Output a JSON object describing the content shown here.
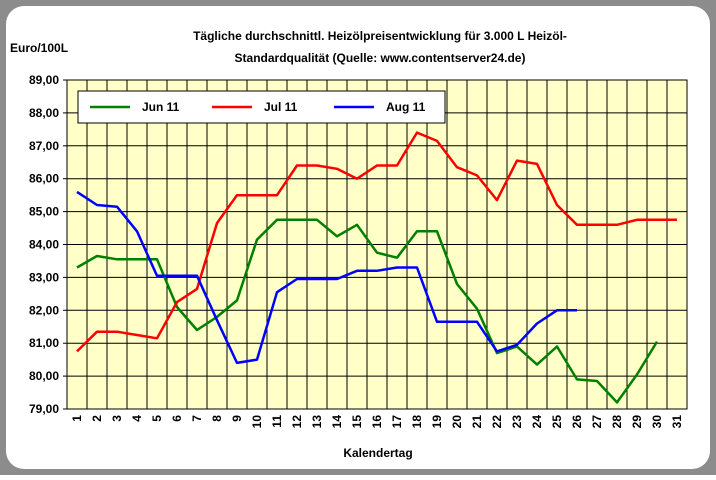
{
  "chart_data": {
    "type": "line",
    "title": [
      "Tägliche durchschnittl. Heizölpreisentwicklung für 3.000 L Heizöl-",
      "Standardqualität (Quelle: www.contentserver24.de)"
    ],
    "y_label": "Euro/100L",
    "x_label": "Kalendertag",
    "categories": [
      "1",
      "2",
      "3",
      "4",
      "5",
      "6",
      "7",
      "8",
      "9",
      "10",
      "11",
      "12",
      "13",
      "14",
      "15",
      "16",
      "17",
      "18",
      "19",
      "20",
      "21",
      "22",
      "23",
      "24",
      "25",
      "26",
      "27",
      "28",
      "29",
      "30",
      "31"
    ],
    "series": [
      {
        "name": "Jun 11",
        "color": "#008000",
        "values": [
          83.3,
          83.65,
          83.55,
          83.55,
          83.55,
          82.1,
          81.4,
          81.8,
          82.3,
          84.15,
          84.75,
          84.75,
          84.75,
          84.25,
          84.6,
          83.75,
          83.6,
          84.4,
          84.4,
          82.8,
          82.05,
          80.7,
          80.9,
          80.35,
          80.9,
          79.9,
          79.85,
          79.2,
          80.05,
          81.05,
          null
        ]
      },
      {
        "name": "Jul 11",
        "color": "#ff0000",
        "values": [
          80.75,
          81.35,
          81.35,
          81.25,
          81.15,
          82.25,
          82.65,
          84.65,
          85.5,
          85.5,
          85.5,
          86.4,
          86.4,
          86.3,
          86.0,
          86.4,
          86.4,
          87.4,
          87.15,
          86.35,
          86.1,
          85.35,
          86.55,
          86.45,
          85.2,
          84.6,
          84.6,
          84.6,
          84.75,
          84.75,
          84.75
        ]
      },
      {
        "name": "Aug 11",
        "color": "#0000ff",
        "values": [
          85.6,
          85.2,
          85.15,
          84.4,
          83.05,
          83.05,
          83.05,
          81.7,
          80.4,
          80.5,
          82.55,
          82.95,
          82.95,
          82.95,
          83.2,
          83.2,
          83.3,
          83.3,
          81.65,
          81.65,
          81.65,
          80.75,
          80.95,
          81.6,
          82.0,
          82.0,
          null,
          null,
          null,
          null,
          null
        ]
      }
    ],
    "ylim": [
      79,
      89
    ],
    "yticks": [
      {
        "value": 79,
        "label": "79,00"
      },
      {
        "value": 80,
        "label": "80,00"
      },
      {
        "value": 81,
        "label": "81,00"
      },
      {
        "value": 82,
        "label": "82,00"
      },
      {
        "value": 83,
        "label": "83,00"
      },
      {
        "value": 84,
        "label": "84,00"
      },
      {
        "value": 85,
        "label": "85,00"
      },
      {
        "value": 86,
        "label": "86,00"
      },
      {
        "value": 87,
        "label": "87,00"
      },
      {
        "value": 88,
        "label": "88,00"
      },
      {
        "value": 89,
        "label": "89,00"
      }
    ],
    "grid": true,
    "legend": "top-left"
  }
}
